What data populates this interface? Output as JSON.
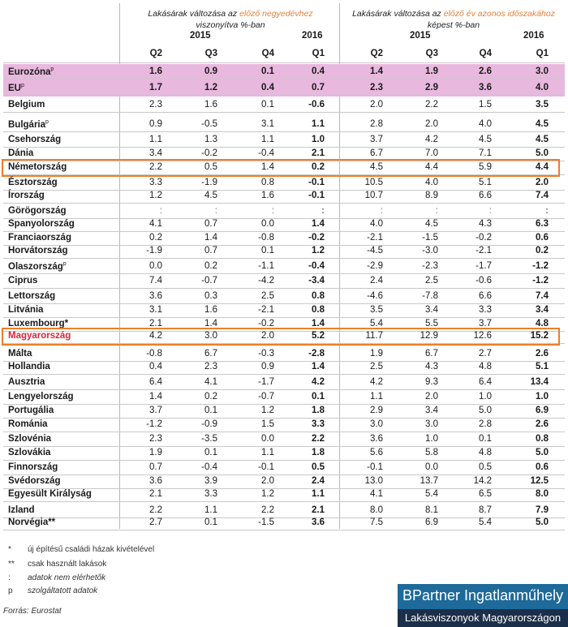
{
  "header": {
    "left_title_pre": "Lakásárak változása az ",
    "left_title_accent": "előző negyedévhez",
    "left_title_line2": "viszonyítva %-ban",
    "right_title_pre": "Lakásárak változása az ",
    "right_title_accent": "előző év azonos időszakához",
    "right_title_line2": "képest %-ban",
    "year_2015": "2015",
    "year_2016": "2016",
    "quarters": [
      "Q2",
      "Q3",
      "Q4",
      "Q1",
      "Q2",
      "Q3",
      "Q4",
      "Q1"
    ]
  },
  "accent_color": "#e8803a",
  "highlight_color": "#f07e26",
  "aggregate_color": "#e8b8de",
  "rows": [
    {
      "label": "Eurozóna",
      "sup": "p",
      "values": [
        "1.6",
        "0.9",
        "0.1",
        "0.4",
        "1.4",
        "1.9",
        "2.6",
        "3.0"
      ],
      "bold": true,
      "aggregate": true
    },
    {
      "label": "EU",
      "sup": "p",
      "values": [
        "1.7",
        "1.2",
        "0.4",
        "0.7",
        "2.3",
        "2.9",
        "3.6",
        "4.0"
      ],
      "bold": true,
      "aggregate": true
    },
    {
      "label": "Belgium",
      "sup": "",
      "values": [
        "2.3",
        "1.6",
        "0.1",
        "-0.6",
        "2.0",
        "2.2",
        "1.5",
        "3.5"
      ]
    },
    {
      "label": "Bulgária",
      "sup": "p",
      "values": [
        "0.9",
        "-0.5",
        "3.1",
        "1.1",
        "2.8",
        "2.0",
        "4.0",
        "4.5"
      ]
    },
    {
      "label": "Csehország",
      "sup": "",
      "values": [
        "1.1",
        "1.3",
        "1.1",
        "1.0",
        "3.7",
        "4.2",
        "4.5",
        "4.5"
      ]
    },
    {
      "label": "Dánia",
      "sup": "",
      "values": [
        "3.4",
        "-0.2",
        "-0.4",
        "2.1",
        "6.7",
        "7.0",
        "7.1",
        "5.0"
      ]
    },
    {
      "label": "Németország",
      "sup": "",
      "values": [
        "2.2",
        "0.5",
        "1.4",
        "0.2",
        "4.5",
        "4.4",
        "5.9",
        "4.4"
      ],
      "highlight": true
    },
    {
      "label": "Észtország",
      "sup": "",
      "values": [
        "3.3",
        "-1.9",
        "0.8",
        "-0.1",
        "10.5",
        "4.0",
        "5.1",
        "2.0"
      ]
    },
    {
      "label": "Írország",
      "sup": "",
      "values": [
        "1.2",
        "4.5",
        "1.6",
        "-0.1",
        "10.7",
        "8.9",
        "6.6",
        "7.4"
      ]
    },
    {
      "label": "Görögország",
      "sup": "",
      "values": [
        ":",
        ":",
        ":",
        ":",
        ":",
        ":",
        ":",
        ":"
      ]
    },
    {
      "label": "Spanyolország",
      "sup": "",
      "values": [
        "4.1",
        "0.7",
        "0.0",
        "1.4",
        "4.0",
        "4.5",
        "4.3",
        "6.3"
      ]
    },
    {
      "label": "Franciaország",
      "sup": "",
      "values": [
        "0.2",
        "1.4",
        "-0.8",
        "-0.2",
        "-2.1",
        "-1.5",
        "-0.2",
        "0.6"
      ]
    },
    {
      "label": "Horvátország",
      "sup": "",
      "values": [
        "-1.9",
        "0.7",
        "0.1",
        "1.2",
        "-4.5",
        "-3.0",
        "-2.1",
        "0.2"
      ]
    },
    {
      "label": "Olaszország",
      "sup": "p",
      "values": [
        "0.0",
        "0.2",
        "-1.1",
        "-0.4",
        "-2.9",
        "-2.3",
        "-1.7",
        "-1.2"
      ]
    },
    {
      "label": "Ciprus",
      "sup": "",
      "values": [
        "7.4",
        "-0.7",
        "-4.2",
        "-3.4",
        "2.4",
        "2.5",
        "-0.6",
        "-1.2"
      ]
    },
    {
      "label": "Lettország",
      "sup": "",
      "values": [
        "3.6",
        "0.3",
        "2.5",
        "0.8",
        "-4.6",
        "-7.8",
        "6.6",
        "7.4"
      ]
    },
    {
      "label": "Litvánia",
      "sup": "",
      "values": [
        "3.1",
        "1.6",
        "-2.1",
        "0.8",
        "3.5",
        "3.4",
        "3.3",
        "3.4"
      ]
    },
    {
      "label": "Luxembourg*",
      "sup": "",
      "values": [
        "2.1",
        "1.4",
        "-0.2",
        "1.4",
        "5.4",
        "5.5",
        "3.7",
        "4.8"
      ]
    },
    {
      "label": "Magyarország",
      "sup": "",
      "values": [
        "4.2",
        "3.0",
        "2.0",
        "5.2",
        "11.7",
        "12.9",
        "12.6",
        "15.2"
      ],
      "highlight": true,
      "red": true
    },
    {
      "label": "Málta",
      "sup": "",
      "values": [
        "-0.8",
        "6.7",
        "-0.3",
        "-2.8",
        "1.9",
        "6.7",
        "2.7",
        "2.6"
      ]
    },
    {
      "label": "Hollandia",
      "sup": "",
      "values": [
        "0.4",
        "2.3",
        "0.9",
        "1.4",
        "2.5",
        "4.3",
        "4.8",
        "5.1"
      ]
    },
    {
      "label": "Ausztria",
      "sup": "",
      "values": [
        "6.4",
        "4.1",
        "-1.7",
        "4.2",
        "4.2",
        "9.3",
        "6.4",
        "13.4"
      ]
    },
    {
      "label": "Lengyelország",
      "sup": "",
      "values": [
        "1.4",
        "0.2",
        "-0.7",
        "0.1",
        "1.1",
        "2.0",
        "1.0",
        "1.0"
      ]
    },
    {
      "label": "Portugália",
      "sup": "",
      "values": [
        "3.7",
        "0.1",
        "1.2",
        "1.8",
        "2.9",
        "3.4",
        "5.0",
        "6.9"
      ]
    },
    {
      "label": "Románia",
      "sup": "",
      "values": [
        "-1.2",
        "-0.9",
        "1.5",
        "3.3",
        "3.0",
        "3.0",
        "2.8",
        "2.6"
      ]
    },
    {
      "label": "Szlovénia",
      "sup": "",
      "values": [
        "2.3",
        "-3.5",
        "0.0",
        "2.2",
        "3.6",
        "1.0",
        "0.1",
        "0.8"
      ]
    },
    {
      "label": "Szlovákia",
      "sup": "",
      "values": [
        "1.9",
        "0.1",
        "1.1",
        "1.8",
        "5.6",
        "5.8",
        "4.8",
        "5.0"
      ]
    },
    {
      "label": "Finnország",
      "sup": "",
      "values": [
        "0.7",
        "-0.4",
        "-0.1",
        "0.5",
        "-0.1",
        "0.0",
        "0.5",
        "0.6"
      ]
    },
    {
      "label": "Svédország",
      "sup": "",
      "values": [
        "3.6",
        "3.9",
        "2.0",
        "2.4",
        "13.0",
        "13.7",
        "14.2",
        "12.5"
      ]
    },
    {
      "label": "Egyesült Királyság",
      "sup": "",
      "values": [
        "2.1",
        "3.3",
        "1.2",
        "1.1",
        "4.1",
        "5.4",
        "6.5",
        "8.0"
      ]
    },
    {
      "label": "Izland",
      "sup": "",
      "values": [
        "2.2",
        "1.1",
        "2.2",
        "2.1",
        "8.0",
        "8.1",
        "8.7",
        "7.9"
      ]
    },
    {
      "label": "Norvégia**",
      "sup": "",
      "values": [
        "2.7",
        "0.1",
        "-1.5",
        "3.6",
        "7.5",
        "6.9",
        "5.4",
        "5.0"
      ]
    }
  ],
  "footnotes": [
    {
      "symbol": "*",
      "text": "új építésű családi házak kivételével",
      "italic": false
    },
    {
      "symbol": "**",
      "text": "csak használt lakások",
      "italic": false
    },
    {
      "symbol": ":",
      "text": "adatok nem elérhetők",
      "italic": true
    },
    {
      "symbol": "p",
      "text": "szolgáltatott adatok",
      "italic": true
    }
  ],
  "source_label": "Forrás:",
  "source_value": "Eurostat",
  "logo": {
    "line1": "BPartner Ingatlanműhely",
    "line2": "Lakásviszonyok Magyarországon"
  }
}
